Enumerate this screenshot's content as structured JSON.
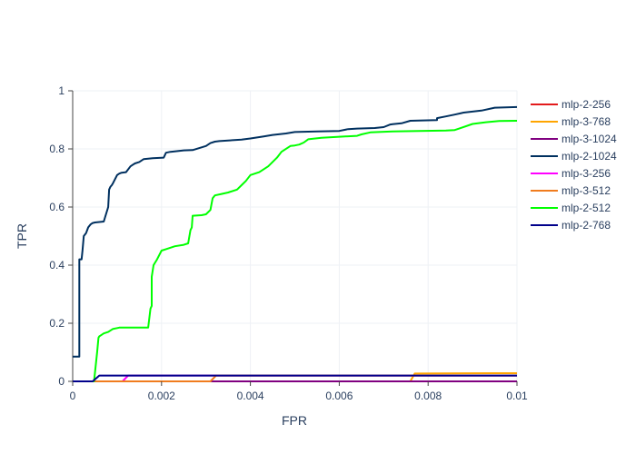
{
  "chart_data": {
    "type": "line",
    "xlabel": "FPR",
    "ylabel": "TPR",
    "xlim": [
      0,
      0.01
    ],
    "ylim": [
      0,
      1
    ],
    "grid": true,
    "legend_position": "right",
    "x_ticks": [
      0,
      0.002,
      0.004,
      0.006,
      0.008,
      0.01
    ],
    "x_tick_labels": [
      "0",
      "0.002",
      "0.004",
      "0.006",
      "0.008",
      "0.01"
    ],
    "y_ticks": [
      0,
      0.2,
      0.4,
      0.6,
      0.8,
      1
    ],
    "y_tick_labels": [
      "0",
      "0.2",
      "0.4",
      "0.6",
      "0.8",
      "1"
    ],
    "series": [
      {
        "name": "mlp-2-256",
        "color": "#e31a1c",
        "x": [
          0,
          0.01
        ],
        "y": [
          0,
          0
        ]
      },
      {
        "name": "mlp-3-768",
        "color": "#ffa500",
        "x": [
          0,
          0.0076,
          0.0077,
          0.0095,
          0.01
        ],
        "y": [
          0,
          0,
          0.027,
          0.028,
          0.028
        ]
      },
      {
        "name": "mlp-3-1024",
        "color": "#800080",
        "x": [
          0,
          0.01
        ],
        "y": [
          0,
          0
        ]
      },
      {
        "name": "mlp-2-1024",
        "color": "#00305f",
        "x": [
          0,
          3e-05,
          0.00015,
          0.00015,
          0.0002,
          0.00022,
          0.00025,
          0.0003,
          0.00035,
          0.0004,
          0.00045,
          0.0005,
          0.0007,
          0.0008,
          0.00082,
          0.00085,
          0.00088,
          0.0009,
          0.001,
          0.00105,
          0.0011,
          0.0012,
          0.0013,
          0.00135,
          0.0014,
          0.0015,
          0.0016,
          0.0018,
          0.00205,
          0.0021,
          0.0022,
          0.0025,
          0.0027,
          0.003,
          0.0031,
          0.0032,
          0.0033,
          0.0035,
          0.0038,
          0.004,
          0.0043,
          0.0045,
          0.0048,
          0.005,
          0.0055,
          0.006,
          0.0062,
          0.0064,
          0.0068,
          0.007,
          0.00715,
          0.0072,
          0.0074,
          0.0076,
          0.0082,
          0.0082,
          0.0084,
          0.0086,
          0.0088,
          0.0092,
          0.0095,
          0.01
        ],
        "y": [
          0.085,
          0.085,
          0.085,
          0.42,
          0.42,
          0.45,
          0.5,
          0.51,
          0.53,
          0.54,
          0.545,
          0.547,
          0.55,
          0.6,
          0.66,
          0.67,
          0.675,
          0.68,
          0.71,
          0.715,
          0.718,
          0.72,
          0.74,
          0.745,
          0.75,
          0.755,
          0.765,
          0.768,
          0.77,
          0.787,
          0.79,
          0.795,
          0.796,
          0.81,
          0.82,
          0.825,
          0.827,
          0.829,
          0.832,
          0.836,
          0.843,
          0.848,
          0.853,
          0.858,
          0.86,
          0.862,
          0.868,
          0.87,
          0.872,
          0.875,
          0.884,
          0.885,
          0.888,
          0.897,
          0.899,
          0.906,
          0.912,
          0.918,
          0.925,
          0.932,
          0.942,
          0.944
        ]
      },
      {
        "name": "mlp-3-256",
        "color": "#ff00ff",
        "x": [
          0,
          0.00112,
          0.00125,
          0.01
        ],
        "y": [
          0,
          0,
          0.02,
          0.02
        ]
      },
      {
        "name": "mlp-3-512",
        "color": "#f07c1e",
        "x": [
          0,
          0.0031,
          0.00323,
          0.01
        ],
        "y": [
          0,
          0,
          0.02,
          0.02
        ]
      },
      {
        "name": "mlp-2-512",
        "color": "#00ff00",
        "x": [
          0,
          0.00048,
          0.00055,
          0.00058,
          0.0006,
          0.0007,
          0.0008,
          0.0009,
          0.00105,
          0.0017,
          0.00175,
          0.00178,
          0.00178,
          0.0018,
          0.00182,
          0.0019,
          0.002,
          0.0021,
          0.0023,
          0.0025,
          0.0026,
          0.00265,
          0.00268,
          0.0027,
          0.0029,
          0.003,
          0.0031,
          0.00315,
          0.0032,
          0.00335,
          0.0035,
          0.0037,
          0.0038,
          0.0039,
          0.004,
          0.0042,
          0.0044,
          0.0046,
          0.0047,
          0.0049,
          0.005,
          0.0051,
          0.0052,
          0.0053,
          0.0056,
          0.006,
          0.0064,
          0.0065,
          0.0067,
          0.0072,
          0.0078,
          0.0084,
          0.0086,
          0.0087,
          0.009,
          0.0093,
          0.0096,
          0.01
        ],
        "y": [
          0,
          0,
          0.1,
          0.15,
          0.155,
          0.165,
          0.17,
          0.18,
          0.185,
          0.185,
          0.25,
          0.26,
          0.36,
          0.38,
          0.4,
          0.42,
          0.45,
          0.455,
          0.465,
          0.47,
          0.475,
          0.52,
          0.53,
          0.57,
          0.572,
          0.575,
          0.59,
          0.63,
          0.64,
          0.645,
          0.65,
          0.66,
          0.675,
          0.69,
          0.71,
          0.72,
          0.74,
          0.77,
          0.79,
          0.81,
          0.812,
          0.815,
          0.822,
          0.833,
          0.838,
          0.842,
          0.845,
          0.85,
          0.857,
          0.86,
          0.862,
          0.863,
          0.865,
          0.87,
          0.886,
          0.892,
          0.896,
          0.897
        ]
      },
      {
        "name": "mlp-2-768",
        "color": "#00008b",
        "x": [
          0,
          0.00045,
          0.0006,
          0.01
        ],
        "y": [
          0,
          0,
          0.02,
          0.02
        ]
      }
    ]
  }
}
